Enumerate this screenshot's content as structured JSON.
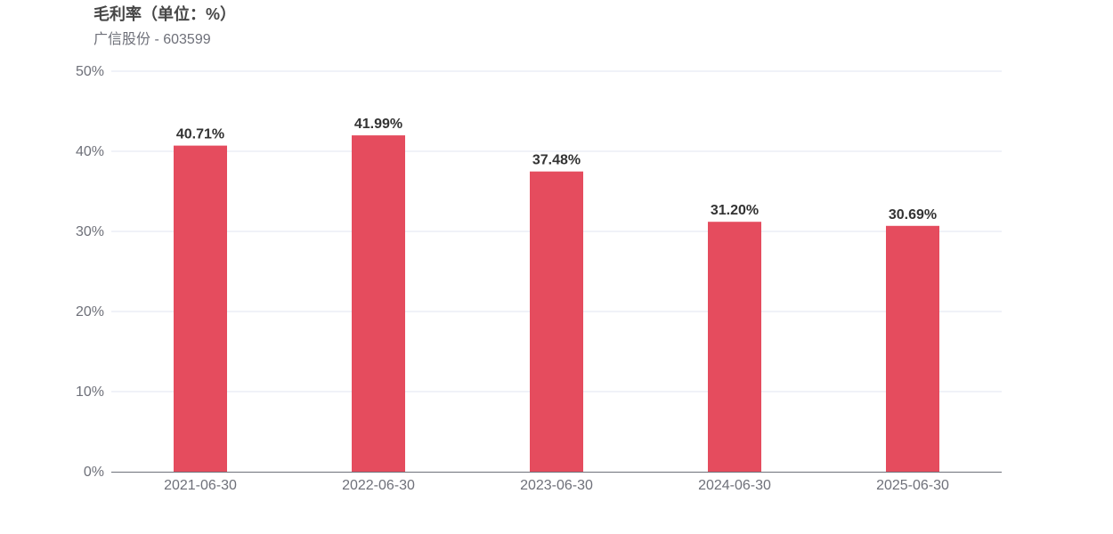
{
  "chart_data": {
    "type": "bar",
    "title": "毛利率（单位：%）",
    "subtitle": "广信股份 - 603599",
    "categories": [
      "2021-06-30",
      "2022-06-30",
      "2023-06-30",
      "2024-06-30",
      "2025-06-30"
    ],
    "values": [
      40.71,
      41.99,
      37.48,
      31.2,
      30.69
    ],
    "data_labels": [
      "40.71%",
      "41.99%",
      "37.48%",
      "31.20%",
      "30.69%"
    ],
    "yticks": [
      "0%",
      "10%",
      "20%",
      "30%",
      "40%",
      "50%"
    ],
    "ylim": [
      0,
      50
    ],
    "xlabel": "",
    "ylabel": "",
    "grid": true,
    "bar_color": "#e54c5e"
  }
}
